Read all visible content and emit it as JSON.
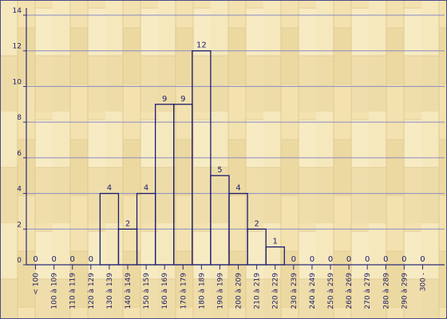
{
  "colors": {
    "background": "#f3e2b0",
    "plank_light": "#f6e8bd",
    "plank_dark": "#e9d49a",
    "axis": "#2a2a7a",
    "grid": "#8a8ac0",
    "bar_stroke": "#1c1c6e",
    "text": "#20206a"
  },
  "chart_data": {
    "type": "bar",
    "title": "",
    "xlabel": "",
    "ylabel": "",
    "ylim": [
      0,
      14
    ],
    "yticks": [
      0,
      2,
      4,
      6,
      8,
      10,
      12,
      14
    ],
    "grid": true,
    "categories": [
      "< 100",
      "100 à 109",
      "110 à 119",
      "120 à 129",
      "130 à 139",
      "140 à 149",
      "150 à 159",
      "160 à 169",
      "170 à 179",
      "180 à 189",
      "190 à 199",
      "200 à 209",
      "210 à 219",
      "220 à 229",
      "230 à 239",
      "240 à 249",
      "250 à 259",
      "260 à 269",
      "270 à 279",
      "280 à 289",
      "290 à 299",
      "300 -"
    ],
    "values": [
      0,
      0,
      0,
      0,
      4,
      2,
      4,
      9,
      9,
      12,
      5,
      4,
      2,
      1,
      0,
      0,
      0,
      0,
      0,
      0,
      0,
      0
    ]
  }
}
